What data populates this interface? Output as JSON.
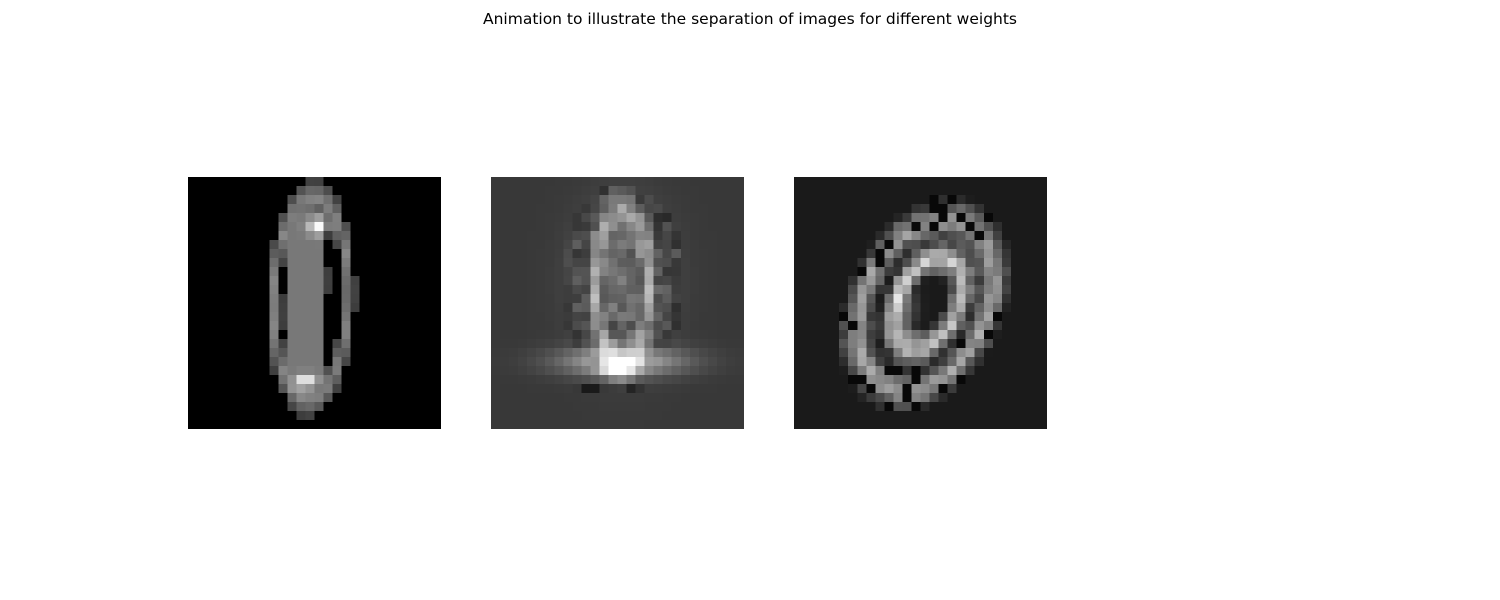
{
  "figure": {
    "title": "Animation to illustrate the separation of images for different weights"
  },
  "panels": [
    {
      "name": "mixed-image-1",
      "content": "digit-0",
      "background": "#000000"
    },
    {
      "name": "mixed-image-2",
      "content": "blurred-garment",
      "background": "#383838"
    },
    {
      "name": "mixed-image-3",
      "content": "digit-0-tilted",
      "background": "#1a1a1a"
    }
  ]
}
